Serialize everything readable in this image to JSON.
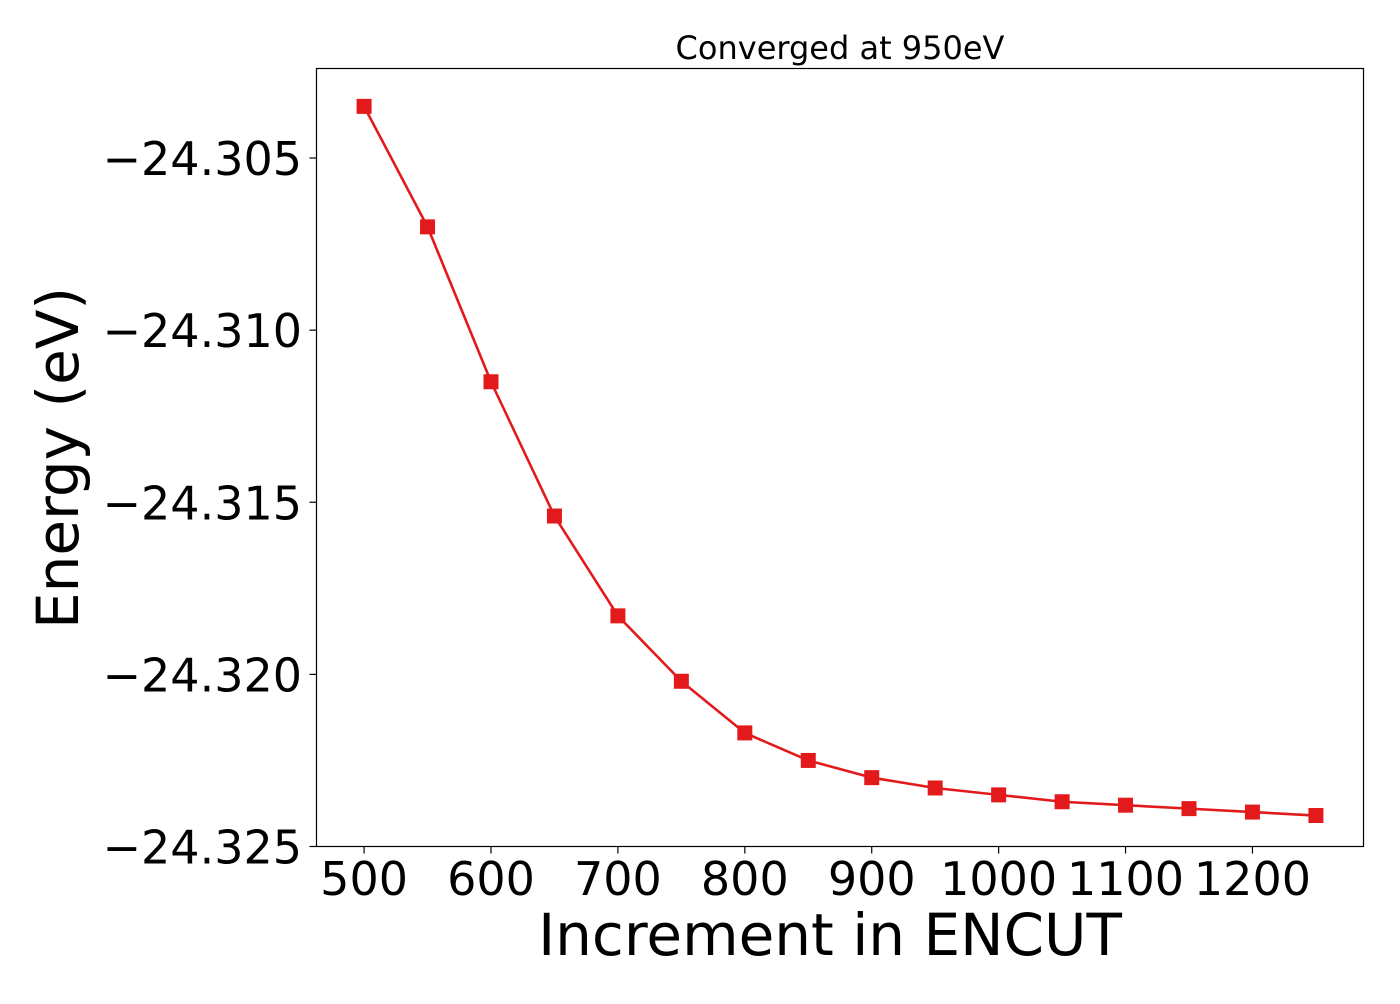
{
  "chart_data": {
    "type": "line",
    "title": "Converged at 950eV",
    "xlabel": "Increment in ENCUT",
    "ylabel": "Energy (eV)",
    "xlim": [
      462.5,
      1287.5
    ],
    "ylim": [
      -24.325,
      -24.3024
    ],
    "x_ticks": [
      500,
      600,
      700,
      800,
      900,
      1000,
      1100,
      1200
    ],
    "x_tick_labels": [
      "500",
      "600",
      "700",
      "800",
      "900",
      "1000",
      "1100",
      "1200"
    ],
    "y_ticks": [
      -24.305,
      -24.31,
      -24.315,
      -24.32,
      -24.325
    ],
    "y_tick_labels": [
      "−24.305",
      "−24.310",
      "−24.315",
      "−24.320",
      "−24.325"
    ],
    "grid": false,
    "legend": "none",
    "series": [
      {
        "color": "#e31a1c",
        "marker": "square",
        "x": [
          500,
          550,
          600,
          650,
          700,
          750,
          800,
          850,
          900,
          950,
          1000,
          1050,
          1100,
          1150,
          1200,
          1250
        ],
        "y": [
          -24.3035,
          -24.307,
          -24.3115,
          -24.3154,
          -24.3183,
          -24.3202,
          -24.3217,
          -24.3225,
          -24.323,
          -24.3233,
          -24.3235,
          -24.3237,
          -24.3238,
          -24.3239,
          -24.324,
          -24.3241
        ]
      }
    ]
  }
}
